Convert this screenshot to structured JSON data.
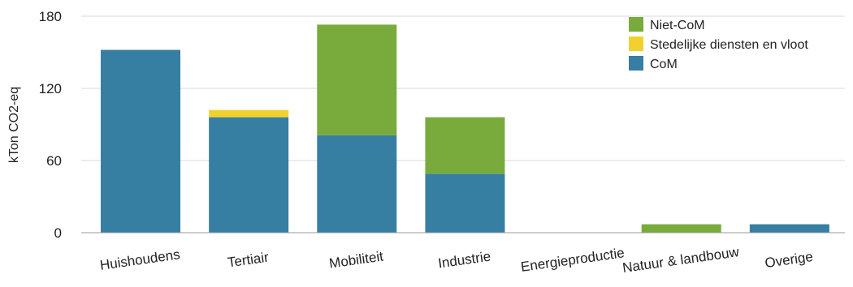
{
  "chart_data": {
    "type": "bar",
    "stacked": true,
    "categories": [
      "Huishoudens",
      "Tertiair",
      "Mobiliteit",
      "Industrie",
      "Energieproductie",
      "Natuur & landbouw",
      "Overige"
    ],
    "series": [
      {
        "name": "CoM",
        "color": "#377ea3",
        "values": [
          152,
          96,
          81,
          49,
          0,
          0,
          7
        ]
      },
      {
        "name": "Stedelijke diensten en vloot",
        "color": "#f2d12f",
        "values": [
          0,
          6,
          0,
          0,
          0,
          0,
          0
        ]
      },
      {
        "name": "Niet-CoM",
        "color": "#78ab3c",
        "values": [
          0,
          0,
          92,
          47,
          0,
          7,
          0
        ]
      }
    ],
    "legend_order": [
      "Niet-CoM",
      "Stedelijke diensten en vloot",
      "CoM"
    ],
    "ylabel": "kTon CO2-eq",
    "ylim": [
      0,
      180
    ],
    "yticks": [
      "0",
      "60",
      "120",
      "180"
    ],
    "grid": "horizontal",
    "legend_position": "top-right"
  }
}
